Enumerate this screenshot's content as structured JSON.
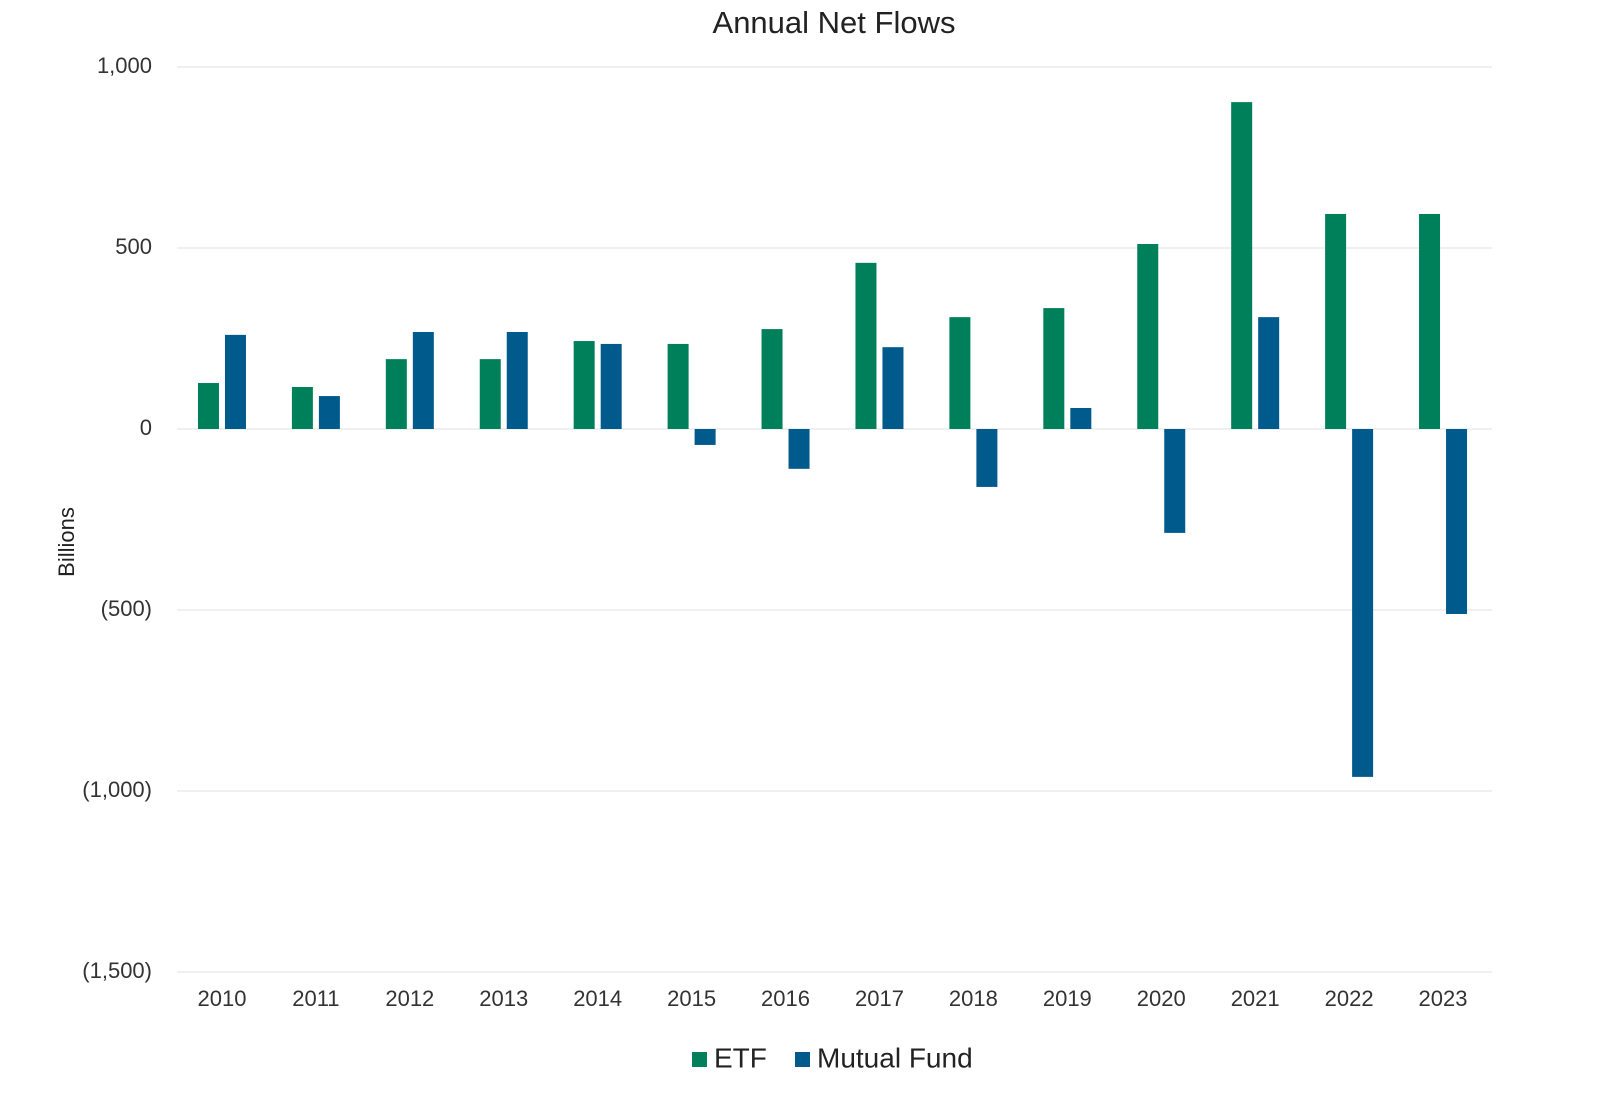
{
  "chart_data": {
    "type": "bar",
    "title": "Annual Net Flows",
    "y_label": "Billions",
    "categories": [
      "2010",
      "2011",
      "2012",
      "2013",
      "2014",
      "2015",
      "2016",
      "2017",
      "2018",
      "2019",
      "2020",
      "2021",
      "2022",
      "2023"
    ],
    "series": [
      {
        "name": "ETF",
        "color": "#00805a",
        "values": [
          127,
          116,
          193,
          193,
          243,
          235,
          276,
          459,
          309,
          334,
          511,
          903,
          594,
          594
        ]
      },
      {
        "name": "Mutual Fund",
        "color": "#005a8c",
        "values": [
          260,
          91,
          268,
          268,
          235,
          -44,
          -110,
          226,
          -160,
          58,
          -287,
          309,
          -961,
          -511
        ]
      }
    ],
    "ylim": [
      -1500,
      1000
    ],
    "yticks": [
      {
        "value": -1500,
        "label": "(1,500)"
      },
      {
        "value": -1000,
        "label": "(1,000)"
      },
      {
        "value": -500,
        "label": "(500)"
      },
      0,
      500,
      {
        "value": 1000,
        "label": "1,000"
      }
    ],
    "grid": true,
    "legend": "bottom"
  }
}
